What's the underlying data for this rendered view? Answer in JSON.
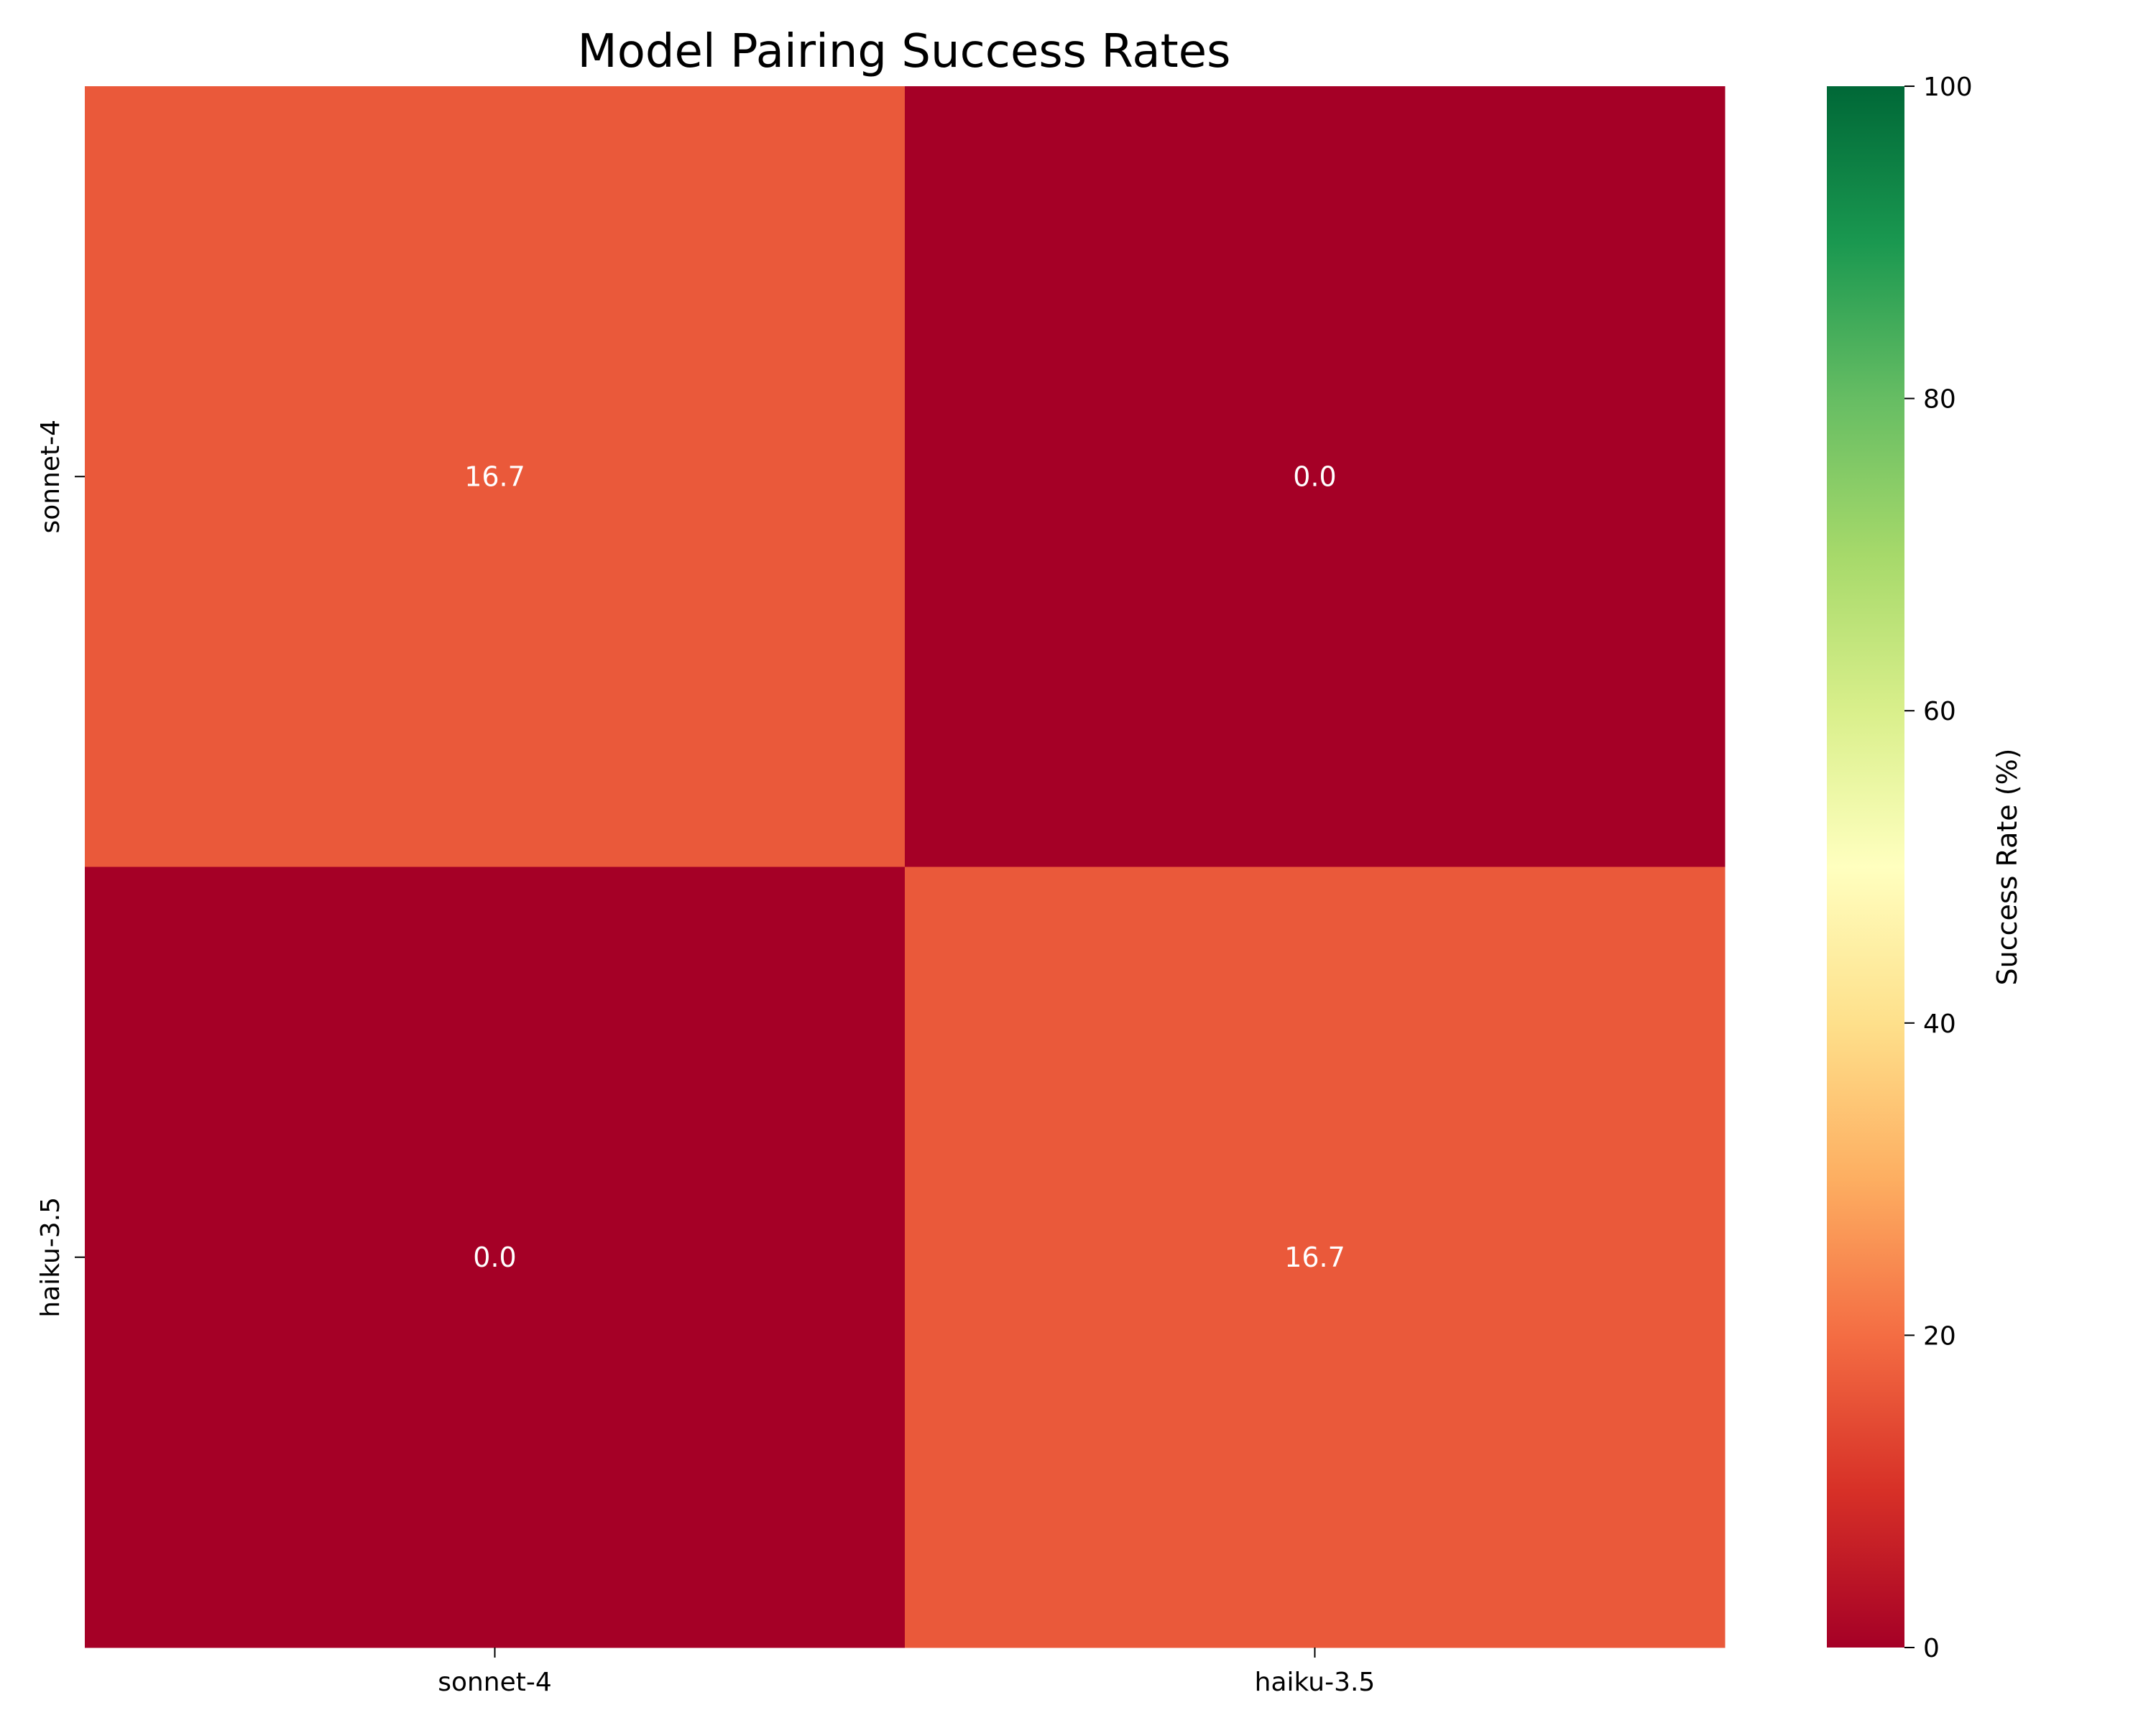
{
  "chart_data": {
    "type": "heatmap",
    "title": "Model Pairing Success Rates",
    "xlabel": "",
    "ylabel": "",
    "x_categories": [
      "sonnet-4",
      "haiku-3.5"
    ],
    "y_categories": [
      "sonnet-4",
      "haiku-3.5"
    ],
    "values": [
      [
        16.7,
        0.0
      ],
      [
        0.0,
        16.7
      ]
    ],
    "value_labels": [
      [
        "16.7",
        "0.0"
      ],
      [
        "0.0",
        "16.7"
      ]
    ],
    "colorbar": {
      "label": "Success Rate (%)",
      "range": [
        0,
        100
      ],
      "ticks": [
        0,
        20,
        40,
        60,
        80,
        100
      ],
      "tick_labels": [
        "0",
        "20",
        "40",
        "60",
        "80",
        "100"
      ],
      "colormap": "RdYlGn",
      "stops": [
        {
          "value": 0,
          "color": "#a50026"
        },
        {
          "value": 10,
          "color": "#d73027"
        },
        {
          "value": 20,
          "color": "#f46d43"
        },
        {
          "value": 30,
          "color": "#fdae61"
        },
        {
          "value": 40,
          "color": "#fee08b"
        },
        {
          "value": 50,
          "color": "#ffffbf"
        },
        {
          "value": 60,
          "color": "#d9ef8b"
        },
        {
          "value": 70,
          "color": "#a6d96a"
        },
        {
          "value": 80,
          "color": "#66bd63"
        },
        {
          "value": 90,
          "color": "#1a9850"
        },
        {
          "value": 100,
          "color": "#006837"
        }
      ]
    },
    "grid": false
  }
}
